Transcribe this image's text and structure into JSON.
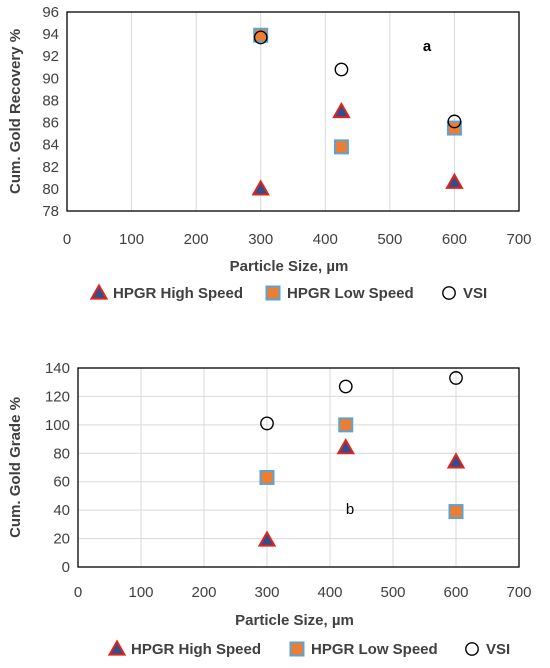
{
  "colors": {
    "triangle_fill": "#2E5090",
    "triangle_edge": "#E2231A",
    "square_fill": "#ED7D31",
    "square_edge": "#5BA3D6",
    "circle_edge": "#000000",
    "grid": "#D9D9D9",
    "frame": "#000000"
  },
  "chart_data": [
    {
      "type": "scatter",
      "xlabel": "Particle Size, µm",
      "ylabel": "Cum. Gold Recovery %",
      "xlim": [
        0,
        700
      ],
      "ylim": [
        78,
        96
      ],
      "xticks": [
        0,
        100,
        200,
        300,
        400,
        500,
        600,
        700
      ],
      "yticks": [
        78,
        80,
        82,
        84,
        86,
        88,
        90,
        92,
        94,
        96
      ],
      "grid": "vertical",
      "annotation": "a",
      "series": [
        {
          "name": "HPGR High Speed",
          "marker": "triangle",
          "x": [
            300,
            425,
            600
          ],
          "y": [
            80.0,
            87.0,
            80.6
          ]
        },
        {
          "name": "HPGR Low Speed",
          "marker": "square",
          "x": [
            300,
            425,
            600
          ],
          "y": [
            93.9,
            83.8,
            85.5
          ]
        },
        {
          "name": "VSI",
          "marker": "circle",
          "x": [
            300,
            425,
            600
          ],
          "y": [
            93.7,
            90.8,
            86.1
          ]
        }
      ]
    },
    {
      "type": "scatter",
      "xlabel": "Particle Size, µm",
      "ylabel": "Cum. Gold Grade %",
      "xlim": [
        0,
        700
      ],
      "ylim": [
        0,
        140
      ],
      "xticks": [
        0,
        100,
        200,
        300,
        400,
        500,
        600,
        700
      ],
      "yticks": [
        0,
        20,
        40,
        60,
        80,
        100,
        120,
        140
      ],
      "grid": "both",
      "annotation": "b",
      "series": [
        {
          "name": "HPGR High Speed",
          "marker": "triangle",
          "x": [
            300,
            425,
            600
          ],
          "y": [
            19,
            84,
            74
          ]
        },
        {
          "name": "HPGR Low Speed",
          "marker": "square",
          "x": [
            300,
            425,
            600
          ],
          "y": [
            63,
            100,
            39
          ]
        },
        {
          "name": "VSI",
          "marker": "circle",
          "x": [
            300,
            425,
            600
          ],
          "y": [
            101,
            127,
            133
          ]
        }
      ]
    }
  ]
}
